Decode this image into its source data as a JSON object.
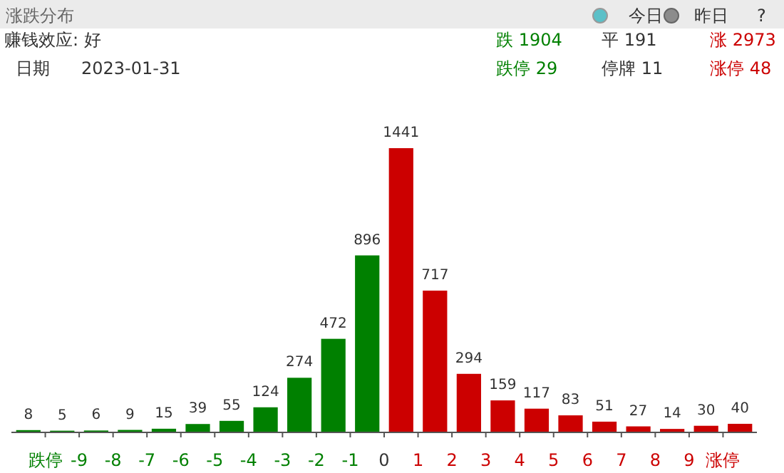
{
  "chart_data": {
    "type": "bar",
    "title": "涨跌分布",
    "x": [
      -10.5,
      -9.5,
      -8.5,
      -7.5,
      -6.5,
      -5.5,
      -4.5,
      -3.5,
      -2.5,
      -1.5,
      -0.5,
      0.5,
      1.5,
      2.5,
      3.5,
      4.5,
      5.5,
      6.5,
      7.5,
      8.5,
      9.5,
      10.5
    ],
    "values": [
      8,
      5,
      6,
      9,
      15,
      39,
      55,
      124,
      274,
      472,
      896,
      1441,
      717,
      294,
      159,
      117,
      83,
      51,
      27,
      14,
      30,
      40
    ],
    "colors": [
      "#008000",
      "#008000",
      "#008000",
      "#008000",
      "#008000",
      "#008000",
      "#008000",
      "#008000",
      "#008000",
      "#008000",
      "#008000",
      "#cc0000",
      "#cc0000",
      "#cc0000",
      "#cc0000",
      "#cc0000",
      "#cc0000",
      "#cc0000",
      "#cc0000",
      "#cc0000",
      "#cc0000",
      "#cc0000"
    ],
    "xlim": [
      -11,
      11
    ],
    "xticks": [
      {
        "value": -10,
        "label": "跌停"
      },
      -9,
      -8,
      -7,
      -6,
      -5,
      -4,
      -3,
      -2,
      -1,
      0,
      1,
      2,
      3,
      4,
      5,
      6,
      7,
      8,
      9,
      {
        "value": 10,
        "label": "涨停"
      }
    ],
    "data_labels": true,
    "annotations": [
      "今日",
      "昨日",
      "?",
      "赚钱效应: 好",
      "日期",
      "2023-01-31",
      "跌 1904",
      "平 191",
      "涨 2973",
      "跌停 29",
      "停牌 11",
      "涨停 48"
    ]
  }
}
